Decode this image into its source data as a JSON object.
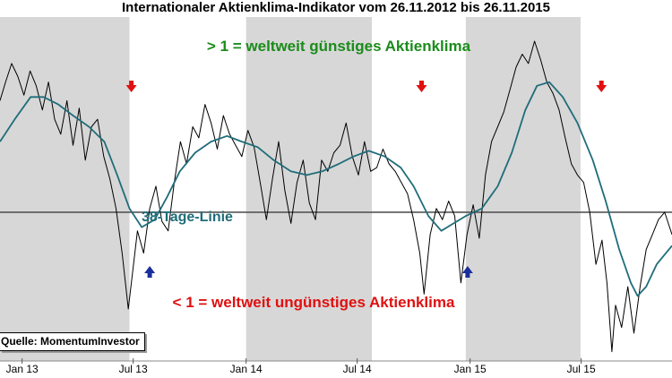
{
  "chart_data": {
    "type": "line",
    "title": "Internationaler Aktienklima-Indikator vom 26.11.2012 bis 26.11.2015",
    "x_range": [
      "2012-11-26",
      "2015-11-26"
    ],
    "y_range": [
      0.2,
      2.05
    ],
    "reference_line": 1,
    "x_ticks": [
      {
        "label": "Jan 13",
        "date": "2013-01-01"
      },
      {
        "label": "Jul 13",
        "date": "2013-07-01"
      },
      {
        "label": "Jan 14",
        "date": "2014-01-01"
      },
      {
        "label": "Jul 14",
        "date": "2014-07-01"
      },
      {
        "label": "Jan 15",
        "date": "2015-01-01"
      },
      {
        "label": "Jul 15",
        "date": "2015-07-01"
      }
    ],
    "grid": false,
    "shaded_periods": [
      [
        "2012-11-26",
        "2013-06-25"
      ],
      [
        "2014-01-01",
        "2014-07-25"
      ],
      [
        "2014-12-25",
        "2015-06-30"
      ]
    ],
    "series": [
      {
        "name": "",
        "color": "#000000",
        "points": [
          [
            "2012-11-26",
            1.6
          ],
          [
            "2012-12-05",
            1.7
          ],
          [
            "2012-12-15",
            1.8
          ],
          [
            "2012-12-25",
            1.73
          ],
          [
            "2013-01-04",
            1.63
          ],
          [
            "2013-01-14",
            1.76
          ],
          [
            "2013-01-24",
            1.68
          ],
          [
            "2013-02-03",
            1.55
          ],
          [
            "2013-02-13",
            1.7
          ],
          [
            "2013-02-23",
            1.5
          ],
          [
            "2013-03-05",
            1.42
          ],
          [
            "2013-03-15",
            1.6
          ],
          [
            "2013-03-25",
            1.36
          ],
          [
            "2013-04-04",
            1.56
          ],
          [
            "2013-04-14",
            1.28
          ],
          [
            "2013-04-24",
            1.46
          ],
          [
            "2013-05-04",
            1.5
          ],
          [
            "2013-05-14",
            1.3
          ],
          [
            "2013-05-24",
            1.18
          ],
          [
            "2013-06-03",
            1.02
          ],
          [
            "2013-06-13",
            0.78
          ],
          [
            "2013-06-23",
            0.48
          ],
          [
            "2013-06-28",
            0.62
          ],
          [
            "2013-07-08",
            0.9
          ],
          [
            "2013-07-18",
            0.78
          ],
          [
            "2013-07-28",
            1.02
          ],
          [
            "2013-08-07",
            1.14
          ],
          [
            "2013-08-17",
            0.95
          ],
          [
            "2013-08-27",
            0.9
          ],
          [
            "2013-09-06",
            1.16
          ],
          [
            "2013-09-16",
            1.38
          ],
          [
            "2013-09-26",
            1.26
          ],
          [
            "2013-10-06",
            1.46
          ],
          [
            "2013-10-16",
            1.4
          ],
          [
            "2013-10-26",
            1.58
          ],
          [
            "2013-11-05",
            1.48
          ],
          [
            "2013-11-15",
            1.34
          ],
          [
            "2013-11-25",
            1.52
          ],
          [
            "2013-12-05",
            1.42
          ],
          [
            "2013-12-15",
            1.36
          ],
          [
            "2013-12-25",
            1.3
          ],
          [
            "2014-01-04",
            1.44
          ],
          [
            "2014-01-14",
            1.35
          ],
          [
            "2014-01-24",
            1.16
          ],
          [
            "2014-02-03",
            0.96
          ],
          [
            "2014-02-13",
            1.18
          ],
          [
            "2014-02-23",
            1.38
          ],
          [
            "2014-03-05",
            1.12
          ],
          [
            "2014-03-15",
            0.94
          ],
          [
            "2014-03-25",
            1.16
          ],
          [
            "2014-04-04",
            1.28
          ],
          [
            "2014-04-14",
            1.05
          ],
          [
            "2014-04-24",
            0.96
          ],
          [
            "2014-05-04",
            1.28
          ],
          [
            "2014-05-14",
            1.22
          ],
          [
            "2014-05-24",
            1.32
          ],
          [
            "2014-06-03",
            1.36
          ],
          [
            "2014-06-13",
            1.48
          ],
          [
            "2014-06-23",
            1.3
          ],
          [
            "2014-07-03",
            1.2
          ],
          [
            "2014-07-13",
            1.38
          ],
          [
            "2014-07-23",
            1.22
          ],
          [
            "2014-08-02",
            1.24
          ],
          [
            "2014-08-12",
            1.34
          ],
          [
            "2014-08-22",
            1.26
          ],
          [
            "2014-09-01",
            1.22
          ],
          [
            "2014-09-11",
            1.16
          ],
          [
            "2014-09-21",
            1.1
          ],
          [
            "2014-10-01",
            0.96
          ],
          [
            "2014-10-11",
            0.78
          ],
          [
            "2014-10-18",
            0.56
          ],
          [
            "2014-10-28",
            0.88
          ],
          [
            "2014-11-07",
            1.02
          ],
          [
            "2014-11-17",
            0.96
          ],
          [
            "2014-11-27",
            1.06
          ],
          [
            "2014-12-07",
            0.98
          ],
          [
            "2014-12-17",
            0.62
          ],
          [
            "2014-12-27",
            0.88
          ],
          [
            "2015-01-06",
            1.04
          ],
          [
            "2015-01-16",
            0.86
          ],
          [
            "2015-01-26",
            1.2
          ],
          [
            "2015-02-05",
            1.38
          ],
          [
            "2015-02-15",
            1.46
          ],
          [
            "2015-02-25",
            1.54
          ],
          [
            "2015-03-07",
            1.66
          ],
          [
            "2015-03-17",
            1.78
          ],
          [
            "2015-03-27",
            1.85
          ],
          [
            "2015-04-06",
            1.8
          ],
          [
            "2015-04-16",
            1.92
          ],
          [
            "2015-04-26",
            1.82
          ],
          [
            "2015-05-06",
            1.7
          ],
          [
            "2015-05-16",
            1.64
          ],
          [
            "2015-05-26",
            1.55
          ],
          [
            "2015-06-05",
            1.4
          ],
          [
            "2015-06-15",
            1.26
          ],
          [
            "2015-06-25",
            1.2
          ],
          [
            "2015-07-05",
            1.16
          ],
          [
            "2015-07-15",
            1.0
          ],
          [
            "2015-07-25",
            0.72
          ],
          [
            "2015-08-04",
            0.85
          ],
          [
            "2015-08-12",
            0.62
          ],
          [
            "2015-08-20",
            0.25
          ],
          [
            "2015-08-26",
            0.5
          ],
          [
            "2015-09-05",
            0.38
          ],
          [
            "2015-09-15",
            0.6
          ],
          [
            "2015-09-25",
            0.35
          ],
          [
            "2015-10-05",
            0.6
          ],
          [
            "2015-10-15",
            0.8
          ],
          [
            "2015-10-25",
            0.88
          ],
          [
            "2015-11-04",
            0.96
          ],
          [
            "2015-11-14",
            1.0
          ],
          [
            "2015-11-26",
            0.88
          ]
        ]
      },
      {
        "name": "38-Tage-Linie",
        "color": "#1f6d7a",
        "points": [
          [
            "2012-11-26",
            1.38
          ],
          [
            "2012-12-20",
            1.5
          ],
          [
            "2013-01-15",
            1.62
          ],
          [
            "2013-02-05",
            1.62
          ],
          [
            "2013-03-01",
            1.58
          ],
          [
            "2013-03-25",
            1.52
          ],
          [
            "2013-04-20",
            1.46
          ],
          [
            "2013-05-15",
            1.38
          ],
          [
            "2013-06-05",
            1.2
          ],
          [
            "2013-06-25",
            1.02
          ],
          [
            "2013-07-15",
            0.92
          ],
          [
            "2013-08-05",
            0.96
          ],
          [
            "2013-08-25",
            1.08
          ],
          [
            "2013-09-15",
            1.22
          ],
          [
            "2013-10-10",
            1.32
          ],
          [
            "2013-11-05",
            1.38
          ],
          [
            "2013-12-01",
            1.41
          ],
          [
            "2013-12-25",
            1.38
          ],
          [
            "2014-01-20",
            1.35
          ],
          [
            "2014-02-15",
            1.28
          ],
          [
            "2014-03-15",
            1.22
          ],
          [
            "2014-04-10",
            1.2
          ],
          [
            "2014-05-05",
            1.22
          ],
          [
            "2014-06-01",
            1.26
          ],
          [
            "2014-06-25",
            1.3
          ],
          [
            "2014-07-20",
            1.33
          ],
          [
            "2014-08-15",
            1.3
          ],
          [
            "2014-09-10",
            1.24
          ],
          [
            "2014-10-01",
            1.14
          ],
          [
            "2014-10-25",
            0.98
          ],
          [
            "2014-11-15",
            0.9
          ],
          [
            "2014-12-05",
            0.94
          ],
          [
            "2014-12-25",
            0.98
          ],
          [
            "2015-01-20",
            1.02
          ],
          [
            "2015-02-15",
            1.14
          ],
          [
            "2015-03-10",
            1.32
          ],
          [
            "2015-04-01",
            1.55
          ],
          [
            "2015-04-20",
            1.68
          ],
          [
            "2015-05-10",
            1.7
          ],
          [
            "2015-06-01",
            1.62
          ],
          [
            "2015-06-25",
            1.48
          ],
          [
            "2015-07-20",
            1.28
          ],
          [
            "2015-08-10",
            1.06
          ],
          [
            "2015-09-01",
            0.8
          ],
          [
            "2015-09-20",
            0.62
          ],
          [
            "2015-10-01",
            0.55
          ],
          [
            "2015-10-15",
            0.6
          ],
          [
            "2015-11-01",
            0.72
          ],
          [
            "2015-11-26",
            0.82
          ]
        ]
      }
    ],
    "annotations": [
      {
        "id": "top",
        "text": "> 1 = weltweit günstiges Aktienklima",
        "color": "#1a8c1a"
      },
      {
        "id": "mid",
        "text": "38-Tage-Linie",
        "color": "#1f6d7a"
      },
      {
        "id": "bottom",
        "text": "< 1 = weltweit ungünstiges Aktienklima",
        "color": "#e01010"
      }
    ],
    "markers": [
      {
        "kind": "down",
        "date": "2013-06-28",
        "color": "#e01010"
      },
      {
        "kind": "down",
        "date": "2014-10-14",
        "color": "#e01010"
      },
      {
        "kind": "down",
        "date": "2015-08-03",
        "color": "#e01010"
      },
      {
        "kind": "up",
        "date": "2013-07-28",
        "color": "#1a2f9c"
      },
      {
        "kind": "up",
        "date": "2014-12-28",
        "color": "#1a2f9c"
      }
    ],
    "source": "Quelle: MomentumInvestor"
  }
}
